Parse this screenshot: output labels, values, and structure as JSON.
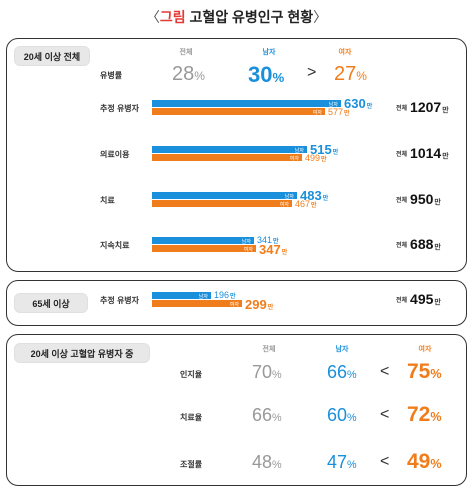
{
  "title": {
    "open": "〈",
    "highlight": "그림",
    "rest": "고혈압 유병인구 현황",
    "close": "〉"
  },
  "headers": {
    "total": "전체",
    "male": "남자",
    "female": "여자"
  },
  "colors": {
    "male": "#1a8fdb",
    "female": "#f07d1c",
    "neutral": "#999999"
  },
  "section1": {
    "label": "20세 이상 전체",
    "prevalence": {
      "label": "유병률",
      "total": "28",
      "male": "30",
      "gt": ">",
      "female": "27",
      "unit": "%"
    },
    "rows": [
      {
        "label": "추정 유병자",
        "male": 630,
        "female": 577,
        "total": 1207
      },
      {
        "label": "의료이용",
        "male": 515,
        "female": 499,
        "total": 1014
      },
      {
        "label": "치료",
        "male": 483,
        "female": 467,
        "total": 950
      },
      {
        "label": "지속치료",
        "male": 341,
        "female": 347,
        "total": 688
      }
    ]
  },
  "section2": {
    "label": "65세 이상",
    "rows": [
      {
        "label": "추정 유병자",
        "male": 196,
        "female": 299,
        "total": 495
      }
    ]
  },
  "section3": {
    "label": "20세 이상 고혈압 유병자 중",
    "rows": [
      {
        "label": "인지율",
        "total": "70",
        "male": "66",
        "lt": "<",
        "female": "75"
      },
      {
        "label": "치료율",
        "total": "66",
        "male": "60",
        "lt": "<",
        "female": "72"
      },
      {
        "label": "조절률",
        "total": "48",
        "male": "47",
        "lt": "<",
        "female": "49"
      }
    ],
    "unit": "%"
  },
  "labels": {
    "male_short": "남자",
    "female_short": "여자",
    "total_short": "전체",
    "unit_man": "만"
  },
  "chart_data": {
    "type": "bar",
    "title": "고혈압 유병인구 현황",
    "categories": [
      "20세 이상 추정 유병자",
      "20세 이상 의료이용",
      "20세 이상 치료",
      "20세 이상 지속치료",
      "65세 이상 추정 유병자"
    ],
    "series": [
      {
        "name": "남자",
        "values": [
          630,
          515,
          483,
          341,
          196
        ]
      },
      {
        "name": "여자",
        "values": [
          577,
          499,
          467,
          347,
          299
        ]
      },
      {
        "name": "전체",
        "values": [
          1207,
          1014,
          950,
          688,
          495
        ]
      }
    ],
    "unit": "만",
    "rates": {
      "유병률": {
        "전체": 28,
        "남자": 30,
        "여자": 27
      },
      "인지율": {
        "전체": 70,
        "남자": 66,
        "여자": 75
      },
      "치료율": {
        "전체": 66,
        "남자": 60,
        "여자": 72
      },
      "조절률": {
        "전체": 48,
        "남자": 47,
        "여자": 49
      }
    }
  }
}
